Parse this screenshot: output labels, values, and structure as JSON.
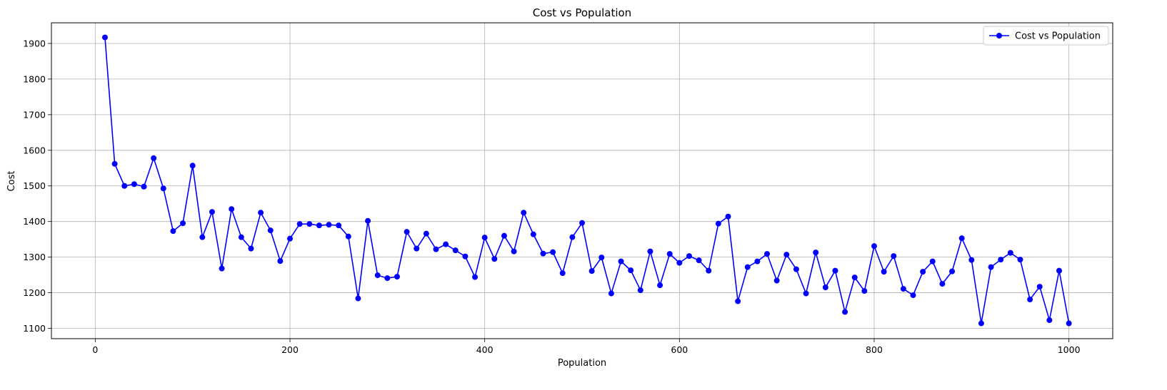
{
  "chart_data": {
    "type": "line",
    "title": "Cost vs Population",
    "xlabel": "Population",
    "ylabel": "Cost",
    "xlim": [
      -45,
      1045
    ],
    "ylim": [
      1071,
      1958
    ],
    "xticks": [
      0,
      200,
      400,
      600,
      800,
      1000
    ],
    "yticks": [
      1100,
      1200,
      1300,
      1400,
      1500,
      1600,
      1700,
      1800,
      1900
    ],
    "grid": true,
    "legend_position": "top-right",
    "marker": "circle",
    "series": [
      {
        "name": "Cost vs Population",
        "color": "#0000ff",
        "x": [
          10,
          20,
          30,
          40,
          50,
          60,
          70,
          80,
          90,
          100,
          110,
          120,
          130,
          140,
          150,
          160,
          170,
          180,
          190,
          200,
          210,
          220,
          230,
          240,
          250,
          260,
          270,
          280,
          290,
          300,
          310,
          320,
          330,
          340,
          350,
          360,
          370,
          380,
          390,
          400,
          410,
          420,
          430,
          440,
          450,
          460,
          470,
          480,
          490,
          500,
          510,
          520,
          530,
          540,
          550,
          560,
          570,
          580,
          590,
          600,
          610,
          620,
          630,
          640,
          650,
          660,
          670,
          680,
          690,
          700,
          710,
          720,
          730,
          740,
          750,
          760,
          770,
          780,
          790,
          800,
          810,
          820,
          830,
          840,
          850,
          860,
          870,
          880,
          890,
          900,
          910,
          920,
          930,
          940,
          950,
          960,
          970,
          980,
          990,
          1000
        ],
        "y": [
          1917,
          1562,
          1500,
          1505,
          1498,
          1578,
          1493,
          1373,
          1395,
          1557,
          1356,
          1427,
          1268,
          1435,
          1356,
          1324,
          1425,
          1375,
          1289,
          1352,
          1393,
          1393,
          1389,
          1391,
          1389,
          1358,
          1184,
          1402,
          1249,
          1241,
          1245,
          1371,
          1324,
          1366,
          1322,
          1336,
          1319,
          1302,
          1244,
          1355,
          1295,
          1360,
          1316,
          1425,
          1364,
          1310,
          1314,
          1255,
          1356,
          1396,
          1261,
          1299,
          1198,
          1288,
          1263,
          1207,
          1316,
          1221,
          1309,
          1284,
          1303,
          1291,
          1262,
          1394,
          1414,
          1176,
          1272,
          1288,
          1309,
          1234,
          1307,
          1266,
          1198,
          1313,
          1215,
          1262,
          1146,
          1243,
          1205,
          1331,
          1259,
          1303,
          1211,
          1193,
          1259,
          1288,
          1225,
          1260,
          1353,
          1292,
          1114,
          1272,
          1293,
          1312,
          1293,
          1181,
          1217,
          1123,
          1262,
          1114
        ]
      }
    ]
  }
}
